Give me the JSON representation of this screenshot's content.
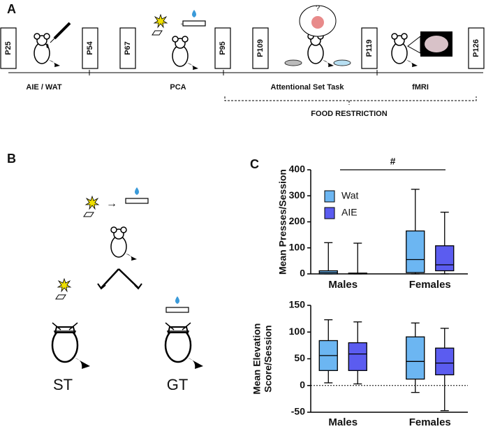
{
  "panel_labels": [
    "A",
    "B",
    "C"
  ],
  "timeline": {
    "days": [
      "P25",
      "P54",
      "P67",
      "P95",
      "P109",
      "P119",
      "P126"
    ],
    "phases": [
      "AIE / WAT",
      "PCA",
      "Attentional Set Task",
      "fMRI"
    ],
    "restriction": "FOOD RESTRICTION"
  },
  "diagram": {
    "groups": [
      "ST",
      "GT"
    ]
  },
  "chart_data": [
    {
      "type": "box",
      "ylabel": [
        "Mean Presses/Session"
      ],
      "categories": [
        "Males",
        "Females"
      ],
      "ylim": [
        0,
        400
      ],
      "yticks": [
        0,
        100,
        200,
        300,
        400
      ],
      "legend": "upper left",
      "annotation": "#",
      "series": [
        {
          "name": "Wat",
          "color": "#6cb6f2",
          "min": [
            0,
            0
          ],
          "q1": [
            0,
            5
          ],
          "median": [
            5,
            55
          ],
          "q3": [
            12,
            165
          ],
          "max": [
            120,
            325
          ]
        },
        {
          "name": "AIE",
          "color": "#5b5cf0",
          "min": [
            0,
            0
          ],
          "q1": [
            0,
            12
          ],
          "median": [
            1,
            35
          ],
          "q3": [
            3,
            108
          ],
          "max": [
            118,
            237
          ]
        }
      ]
    },
    {
      "type": "box",
      "ylabel": [
        "Mean Elevation",
        "Score/Session"
      ],
      "categories": [
        "Males",
        "Females"
      ],
      "ylim": [
        -50,
        150
      ],
      "yticks": [
        -50,
        0,
        50,
        100,
        150
      ],
      "reference_line": 0,
      "series": [
        {
          "color": "#6cb6f2",
          "min": [
            5,
            -13
          ],
          "q1": [
            28,
            12
          ],
          "median": [
            56,
            45
          ],
          "q3": [
            84,
            91
          ],
          "max": [
            123,
            117
          ]
        },
        {
          "color": "#5b5cf0",
          "min": [
            3,
            -47
          ],
          "q1": [
            28,
            20
          ],
          "median": [
            59,
            42
          ],
          "q3": [
            80,
            70
          ],
          "max": [
            119,
            107
          ]
        }
      ]
    }
  ]
}
